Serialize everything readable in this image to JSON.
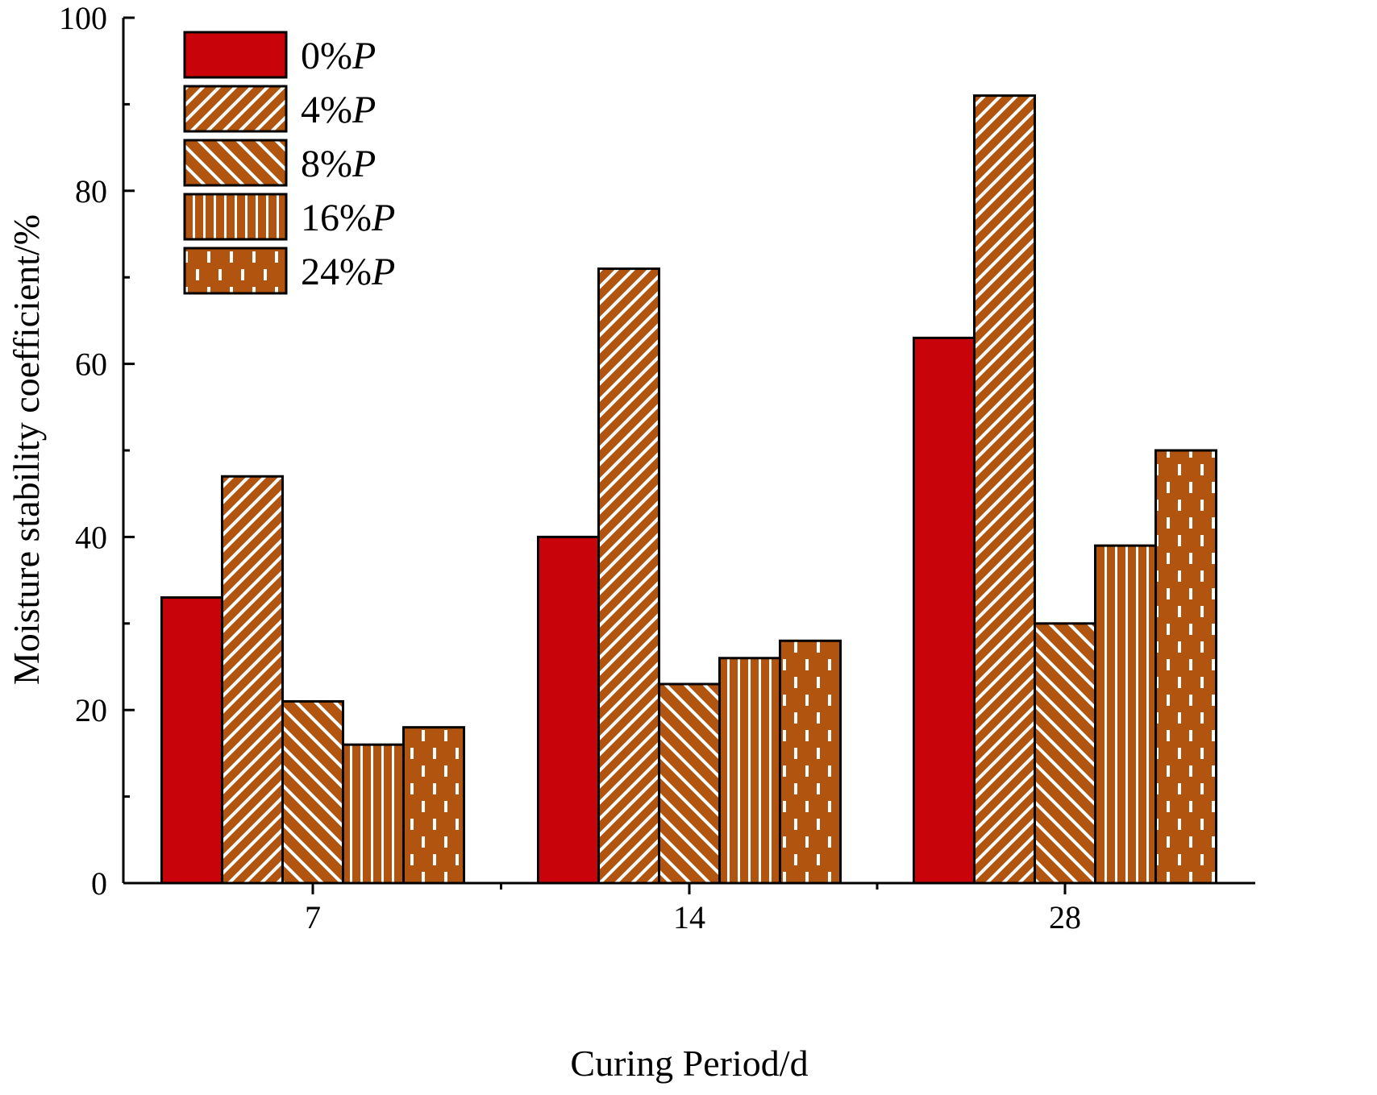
{
  "chart_data": {
    "type": "bar",
    "title": "",
    "xlabel": "Curing Period/d",
    "ylabel": "Moisture stability coefficient/%",
    "ylim": [
      0,
      100
    ],
    "yticks": [
      0,
      20,
      40,
      60,
      80,
      100
    ],
    "ytick_labels": [
      "0",
      "20",
      "40",
      "60",
      "80",
      "100"
    ],
    "categories": [
      "7",
      "14",
      "28"
    ],
    "legend_position": "top-left",
    "series": [
      {
        "name": "0%",
        "suffix": "P",
        "pattern": "solid",
        "color": "#c8040a",
        "values": [
          33,
          40,
          63
        ]
      },
      {
        "name": "4%",
        "suffix": "P",
        "pattern": "diag-up",
        "color": "#b05410",
        "values": [
          47,
          71,
          91
        ]
      },
      {
        "name": "8%",
        "suffix": "P",
        "pattern": "diag-down",
        "color": "#b05410",
        "values": [
          21,
          23,
          30
        ]
      },
      {
        "name": "16%",
        "suffix": "P",
        "pattern": "vertical",
        "color": "#b05410",
        "values": [
          16,
          26,
          39
        ]
      },
      {
        "name": "24%",
        "suffix": "P",
        "pattern": "dashed-vertical",
        "color": "#b05410",
        "values": [
          18,
          28,
          50
        ]
      }
    ]
  }
}
